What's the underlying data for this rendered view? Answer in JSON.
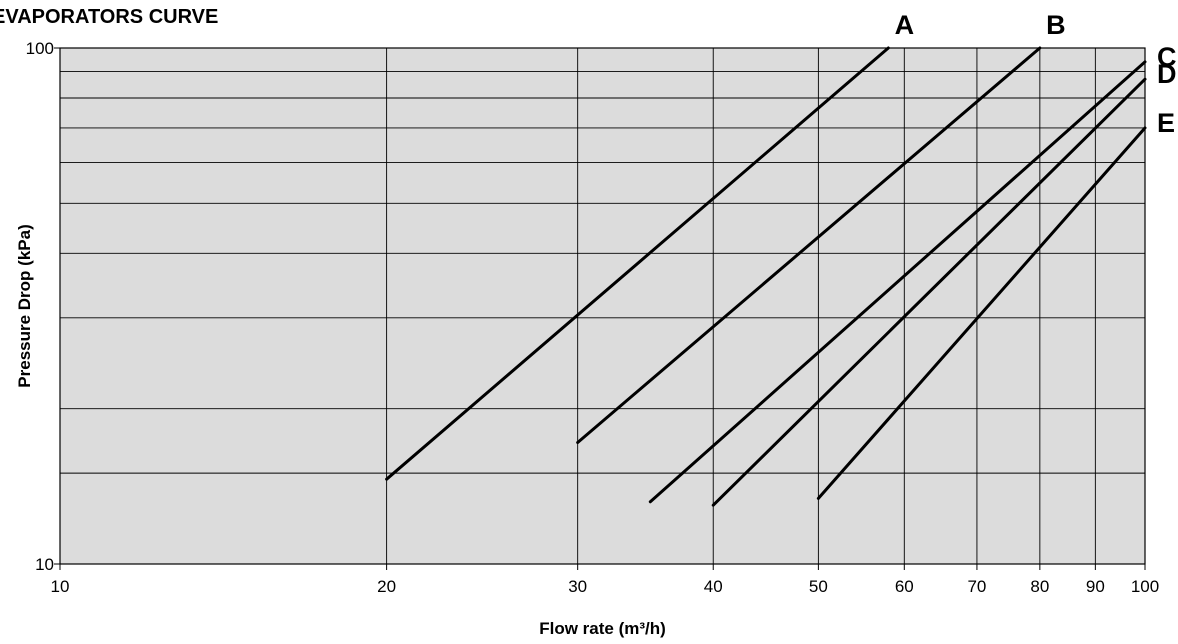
{
  "chart_data": {
    "type": "line",
    "title": "EVAPORATORS CURVE",
    "xlabel": "Flow rate (m³/h)",
    "ylabel": "Pressure Drop (kPa)",
    "x_scale": "log",
    "y_scale": "log",
    "xlim": [
      10,
      100
    ],
    "ylim": [
      10,
      100
    ],
    "x_ticks": [
      10,
      20,
      30,
      40,
      50,
      60,
      70,
      80,
      90,
      100
    ],
    "y_ticks": [
      10,
      100
    ],
    "x_tick_labels": [
      "10",
      "20",
      "30",
      "40",
      "50",
      "60",
      "70",
      "80",
      "90",
      "100"
    ],
    "y_tick_labels": [
      "10",
      "100"
    ],
    "y_gridlines": [
      15,
      20,
      30,
      40,
      50,
      60,
      70,
      80,
      90,
      100
    ],
    "grid": true,
    "background": "#dcdcdc",
    "series": [
      {
        "name": "A",
        "x": [
          20,
          58
        ],
        "y": [
          14.6,
          100
        ]
      },
      {
        "name": "B",
        "x": [
          30,
          80
        ],
        "y": [
          17.2,
          100
        ]
      },
      {
        "name": "C",
        "x": [
          35,
          100
        ],
        "y": [
          13.2,
          94
        ]
      },
      {
        "name": "D",
        "x": [
          40,
          100
        ],
        "y": [
          13.0,
          87
        ]
      },
      {
        "name": "E",
        "x": [
          50,
          100
        ],
        "y": [
          13.4,
          70
        ]
      }
    ]
  }
}
